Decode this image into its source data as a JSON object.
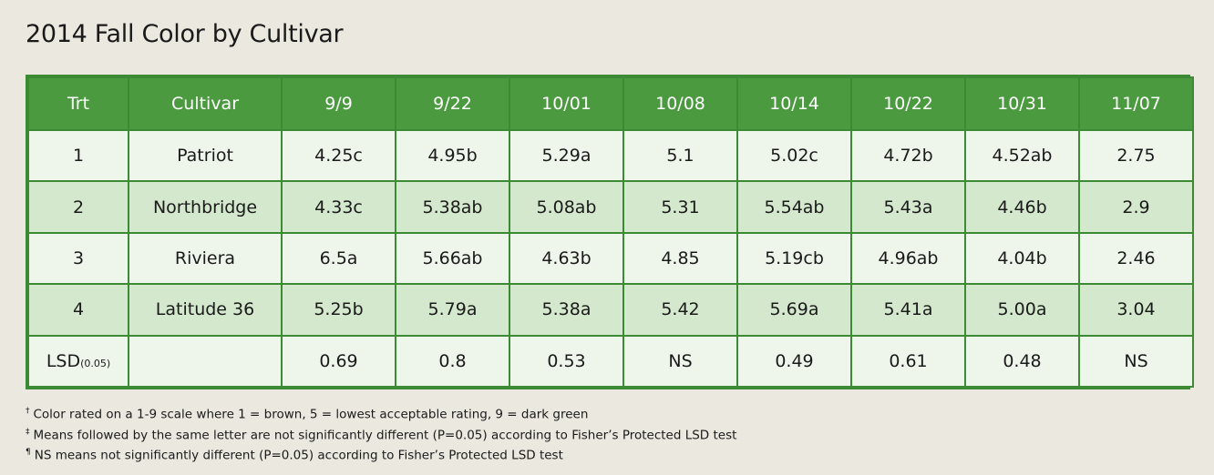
{
  "title": "2014 Fall Color by Cultivar",
  "table": {
    "headers": [
      "Trt",
      "Cultivar",
      "9/9",
      "9/22",
      "10/01",
      "10/08",
      "10/14",
      "10/22",
      "10/31",
      "11/07"
    ],
    "rows": [
      [
        "1",
        "Patriot",
        "4.25c",
        "4.95b",
        "5.29a",
        "5.1",
        "5.02c",
        "4.72b",
        "4.52ab",
        "2.75"
      ],
      [
        "2",
        "Northbridge",
        "4.33c",
        "5.38ab",
        "5.08ab",
        "5.31",
        "5.54ab",
        "5.43a",
        "4.46b",
        "2.9"
      ],
      [
        "3",
        "Riviera",
        "6.5a",
        "5.66ab",
        "4.63b",
        "4.85",
        "5.19cb",
        "4.96ab",
        "4.04b",
        "2.46"
      ],
      [
        "4",
        "Latitude 36",
        "5.25b",
        "5.79a",
        "5.38a",
        "5.42",
        "5.69a",
        "5.41a",
        "5.00a",
        "3.04"
      ]
    ],
    "lsd_row": {
      "label": "LSD",
      "label_sub": "(0.05)",
      "cultivar": "",
      "values": [
        "0.69",
        "0.8",
        "0.53",
        "NS",
        "0.49",
        "0.61",
        "0.48",
        "NS"
      ]
    }
  },
  "footnotes": [
    {
      "mark": "†",
      "text": "Color rated on a 1-9 scale where 1 = brown, 5 = lowest acceptable rating, 9 = dark green"
    },
    {
      "mark": "‡",
      "text": "Means followed by the same letter are not significantly different (P=0.05) according to Fisher’s Protected LSD test"
    },
    {
      "mark": "¶",
      "text": "NS means not significantly different (P=0.05) according to Fisher’s Protected LSD test"
    }
  ]
}
